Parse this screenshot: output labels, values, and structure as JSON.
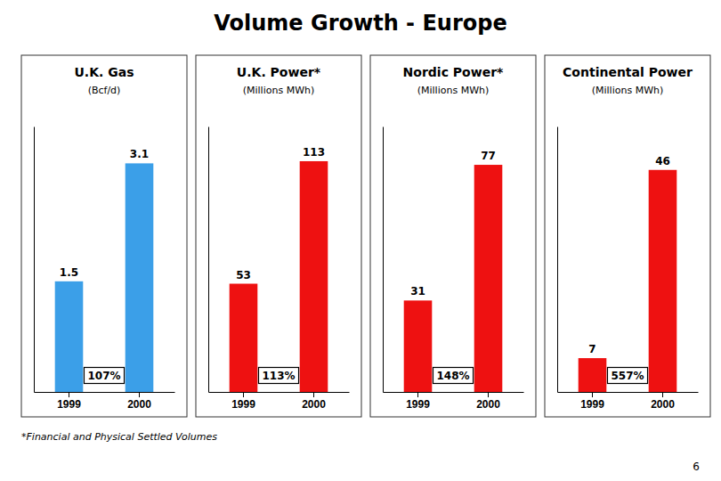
{
  "title": "Volume Growth - Europe",
  "chart_data": [
    {
      "type": "bar",
      "title": "U.K. Gas",
      "subtitle": "(Bcf/d)",
      "categories": [
        "1999",
        "2000"
      ],
      "values": [
        1.5,
        3.1
      ],
      "color": "#3B9FE8",
      "ylim": [
        0,
        3.6
      ],
      "data_labels": true,
      "tick_labels": "x",
      "annotations": [
        "107%"
      ]
    },
    {
      "type": "bar",
      "title": "U.K. Power*",
      "subtitle": "(Millions MWh)",
      "categories": [
        "1999",
        "2000"
      ],
      "values": [
        53,
        113
      ],
      "color": "#EE1111",
      "ylim": [
        0,
        130
      ],
      "data_labels": true,
      "tick_labels": "x",
      "annotations": [
        "113%"
      ]
    },
    {
      "type": "bar",
      "title": "Nordic Power*",
      "subtitle": "(Millions MWh)",
      "categories": [
        "1999",
        "2000"
      ],
      "values": [
        31,
        77
      ],
      "color": "#EE1111",
      "ylim": [
        0,
        90
      ],
      "data_labels": true,
      "tick_labels": "x",
      "annotations": [
        "148%"
      ]
    },
    {
      "type": "bar",
      "title": "Continental Power",
      "subtitle": "(Millions MWh)",
      "categories": [
        "1999",
        "2000"
      ],
      "values": [
        7,
        46
      ],
      "color": "#EE1111",
      "ylim": [
        0,
        55
      ],
      "data_labels": true,
      "tick_labels": "x",
      "annotations": [
        "557%"
      ]
    }
  ],
  "annotations": [
    "*Financial and Physical Settled Volumes",
    "6"
  ]
}
